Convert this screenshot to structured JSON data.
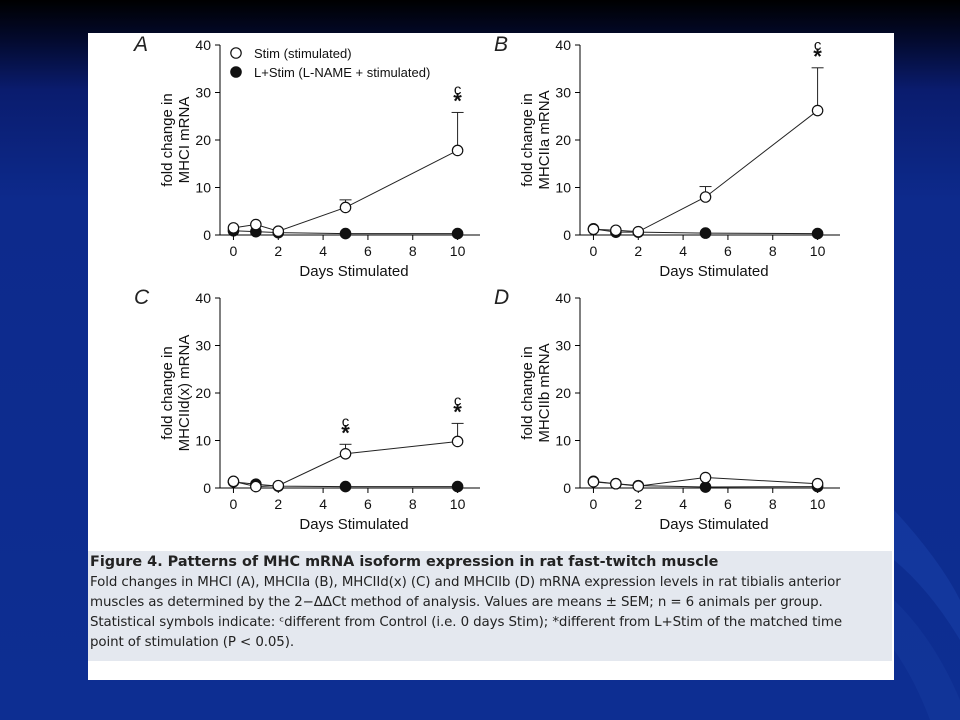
{
  "page": {
    "background_colors": [
      "#000000",
      "#0a1c6e",
      "#0d2e92"
    ],
    "slide_color": "#ffffff"
  },
  "legend": {
    "items": [
      {
        "marker": "open-circle",
        "label": "Stim (stimulated)"
      },
      {
        "marker": "filled-circle",
        "label": "L+Stim (L-NAME + stimulated)"
      }
    ]
  },
  "chart_data": [
    {
      "type": "line",
      "panel_label": "A",
      "ylabel": "fold change in MHCI mRNA",
      "ylabel_lines": [
        "fold change in",
        "MHCI mRNA"
      ],
      "xlabel": "Days Stimulated",
      "xticks": [
        "0",
        "2",
        "4",
        "6",
        "8",
        "10"
      ],
      "yticks": [
        "0",
        "10",
        "20",
        "30",
        "40"
      ],
      "xlim": [
        -0.6,
        11
      ],
      "ylim": [
        0,
        40
      ],
      "series": [
        {
          "name": "Stim (stimulated)",
          "marker": "open",
          "x": [
            0,
            1,
            2,
            5,
            10
          ],
          "y": [
            1.5,
            2.2,
            0.8,
            5.8,
            17.8
          ],
          "err": [
            0.4,
            0.5,
            0.3,
            1.6,
            8.0
          ]
        },
        {
          "name": "L+Stim (L-NAME + stimulated)",
          "marker": "filled",
          "x": [
            0,
            1,
            2,
            5,
            10
          ],
          "y": [
            0.9,
            0.7,
            0.5,
            0.3,
            0.3
          ],
          "err": [
            0,
            0,
            0,
            0,
            0
          ]
        }
      ],
      "annotations": [
        {
          "x": 10,
          "text": "c",
          "star": "*"
        }
      ]
    },
    {
      "type": "line",
      "panel_label": "B",
      "ylabel": "fold change in MHCIIa mRNA",
      "ylabel_lines": [
        "fold change in",
        "MHCIIa mRNA"
      ],
      "xlabel": "Days Stimulated",
      "xticks": [
        "0",
        "2",
        "4",
        "6",
        "8",
        "10"
      ],
      "yticks": [
        "0",
        "10",
        "20",
        "30",
        "40"
      ],
      "xlim": [
        -0.6,
        11
      ],
      "ylim": [
        0,
        40
      ],
      "series": [
        {
          "name": "Stim (stimulated)",
          "marker": "open",
          "x": [
            0,
            1,
            2,
            5,
            10
          ],
          "y": [
            1.2,
            1.0,
            0.7,
            8.0,
            26.2
          ],
          "err": [
            0.3,
            0.3,
            0.2,
            2.2,
            9.0
          ]
        },
        {
          "name": "L+Stim (L-NAME + stimulated)",
          "marker": "filled",
          "x": [
            0,
            1,
            2,
            5,
            10
          ],
          "y": [
            1.3,
            0.6,
            0.6,
            0.4,
            0.3
          ],
          "err": [
            0,
            0,
            0,
            0,
            0
          ]
        }
      ],
      "annotations": [
        {
          "x": 10,
          "text": "c",
          "star": "*"
        }
      ]
    },
    {
      "type": "line",
      "panel_label": "C",
      "ylabel": "fold change in MHCIId(x) mRNA",
      "ylabel_lines": [
        "fold change in",
        "MHCIId(x) mRNA"
      ],
      "xlabel": "Days Stimulated",
      "xticks": [
        "0",
        "2",
        "4",
        "6",
        "8",
        "10"
      ],
      "yticks": [
        "0",
        "10",
        "20",
        "30",
        "40"
      ],
      "xlim": [
        -0.6,
        11
      ],
      "ylim": [
        0,
        40
      ],
      "series": [
        {
          "name": "Stim (stimulated)",
          "marker": "open",
          "x": [
            0,
            1,
            2,
            5,
            10
          ],
          "y": [
            1.4,
            0.3,
            0.5,
            7.2,
            9.8
          ],
          "err": [
            0.3,
            0.2,
            0.2,
            2.0,
            3.8
          ]
        },
        {
          "name": "L+Stim (L-NAME + stimulated)",
          "marker": "filled",
          "x": [
            0,
            1,
            2,
            5,
            10
          ],
          "y": [
            1.3,
            0.8,
            0.4,
            0.3,
            0.3
          ],
          "err": [
            0,
            0,
            0,
            0,
            0
          ]
        }
      ],
      "annotations": [
        {
          "x": 5,
          "text": "c",
          "star": "*"
        },
        {
          "x": 10,
          "text": "c",
          "star": "*"
        }
      ]
    },
    {
      "type": "line",
      "panel_label": "D",
      "ylabel": "fold change in MHCIIb mRNA",
      "ylabel_lines": [
        "fold change in",
        "MHCIIb mRNA"
      ],
      "xlabel": "Days Stimulated",
      "xticks": [
        "0",
        "2",
        "4",
        "6",
        "8",
        "10"
      ],
      "yticks": [
        "0",
        "10",
        "20",
        "30",
        "40"
      ],
      "xlim": [
        -0.6,
        11
      ],
      "ylim": [
        0,
        40
      ],
      "series": [
        {
          "name": "Stim (stimulated)",
          "marker": "open",
          "x": [
            0,
            1,
            2,
            5,
            10
          ],
          "y": [
            1.3,
            0.9,
            0.4,
            2.2,
            0.9
          ],
          "err": [
            0.2,
            0.2,
            0.2,
            0.5,
            0.3
          ]
        },
        {
          "name": "L+Stim (L-NAME + stimulated)",
          "marker": "filled",
          "x": [
            0,
            1,
            2,
            5,
            10
          ],
          "y": [
            1.4,
            0.9,
            0.5,
            0.2,
            0.3
          ],
          "err": [
            0,
            0,
            0,
            0,
            0
          ]
        }
      ],
      "annotations": []
    }
  ],
  "caption": {
    "title": "Figure 4.  Patterns of MHC mRNA isoform expression in rat fast-twitch muscle",
    "lines": [
      "Fold changes in MHCI (A), MHCIIa (B), MHCIId(x) (C) and MHCIIb (D) mRNA expression levels in rat tibialis anterior",
      "muscles as determined by the 2−ΔΔCt method of analysis. Values are means ± SEM; n = 6 animals per group.",
      "Statistical symbols indicate: ᶜdifferent from Control (i.e. 0 days Stim); *different from L+Stim of the matched time",
      "point of stimulation (P < 0.05)."
    ]
  }
}
